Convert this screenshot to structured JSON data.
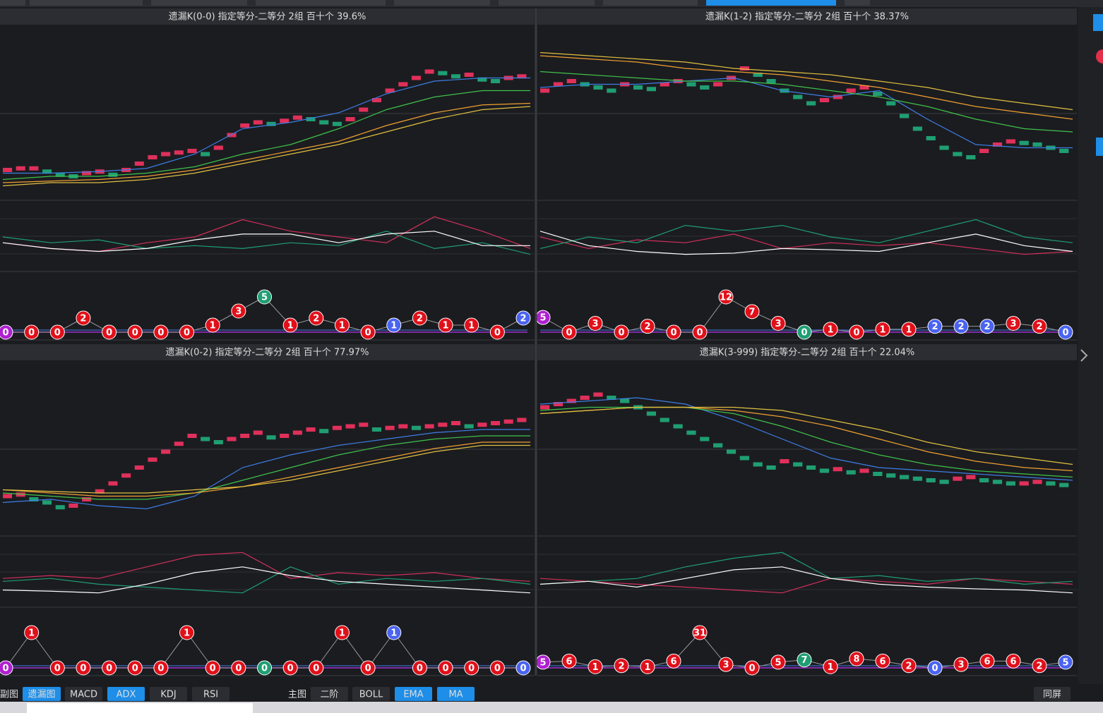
{
  "panels": [
    {
      "title": "遗漏K(0-0)  指定等分-二等分  2组  百十个  39.6%",
      "ylim": [
        0,
        100
      ],
      "indicator_ylim": [
        0,
        100
      ],
      "bubble_ylim": [
        0,
        5
      ],
      "bricks": [
        16,
        17,
        17,
        15,
        13,
        12,
        14,
        15,
        13,
        16,
        20,
        24,
        26,
        27,
        28,
        26,
        30,
        38,
        44,
        46,
        45,
        47,
        49,
        48,
        46,
        45,
        48,
        54,
        60,
        66,
        70,
        74,
        78,
        77,
        75,
        76,
        73,
        72,
        74,
        75
      ],
      "lines": [
        {
          "color": "#3d7ee6",
          "values": [
            14,
            14,
            15,
            17,
            26,
            42,
            46,
            52,
            64,
            72,
            74,
            74
          ]
        },
        {
          "color": "#3fc24a",
          "values": [
            10,
            12,
            12,
            14,
            18,
            26,
            32,
            42,
            54,
            62,
            66,
            66
          ]
        },
        {
          "color": "#f0a030",
          "values": [
            8,
            9,
            10,
            12,
            16,
            22,
            28,
            34,
            44,
            52,
            57,
            58
          ]
        },
        {
          "color": "#e0c040",
          "values": [
            6,
            8,
            8,
            10,
            14,
            20,
            26,
            32,
            40,
            48,
            54,
            56
          ]
        }
      ],
      "indicator": [
        {
          "color": "#d0305a",
          "values": [
            40,
            30,
            25,
            40,
            50,
            80,
            60,
            50,
            40,
            85,
            60,
            30
          ]
        },
        {
          "color": "#1f9e72",
          "values": [
            50,
            40,
            45,
            30,
            35,
            30,
            40,
            35,
            60,
            30,
            40,
            20
          ]
        },
        {
          "color": "#ffffff",
          "values": [
            40,
            30,
            25,
            30,
            45,
            55,
            55,
            40,
            55,
            60,
            35,
            35
          ]
        }
      ],
      "bubbles": {
        "values": [
          0,
          0,
          0,
          2,
          0,
          0,
          0,
          0,
          1,
          3,
          5,
          1,
          2,
          1,
          0,
          1,
          2,
          1,
          1,
          0,
          2
        ],
        "colors": [
          "#b020d0",
          "#e0101a",
          "#e0101a",
          "#e0101a",
          "#e0101a",
          "#e0101a",
          "#e0101a",
          "#e0101a",
          "#e0101a",
          "#e0101a",
          "#1f9e72",
          "#e0101a",
          "#e0101a",
          "#e0101a",
          "#e0101a",
          "#4a63f0",
          "#e0101a",
          "#e0101a",
          "#e0101a",
          "#e0101a",
          "#4a63f0"
        ]
      }
    },
    {
      "title": "遗漏K(1-2)  指定等分-二等分  2组  百十个  38.37%",
      "ylim": [
        0,
        100
      ],
      "indicator_ylim": [
        0,
        100
      ],
      "bubble_ylim": [
        0,
        12
      ],
      "bricks": [
        66,
        70,
        72,
        70,
        68,
        66,
        70,
        68,
        67,
        70,
        72,
        70,
        68,
        70,
        74,
        80,
        76,
        72,
        66,
        62,
        58,
        60,
        62,
        66,
        68,
        64,
        58,
        50,
        42,
        36,
        30,
        26,
        24,
        28,
        32,
        34,
        33,
        32,
        30,
        28
      ],
      "lines": [
        {
          "color": "#3d7ee6",
          "values": [
            68,
            70,
            70,
            72,
            74,
            66,
            62,
            66,
            48,
            32,
            30,
            30
          ]
        },
        {
          "color": "#3fc24a",
          "values": [
            78,
            76,
            74,
            72,
            72,
            70,
            66,
            62,
            56,
            48,
            42,
            40
          ]
        },
        {
          "color": "#f0a030",
          "values": [
            88,
            86,
            84,
            80,
            78,
            76,
            72,
            68,
            62,
            56,
            52,
            48
          ]
        },
        {
          "color": "#e0c040",
          "values": [
            90,
            88,
            86,
            84,
            80,
            78,
            76,
            72,
            68,
            62,
            58,
            54
          ]
        }
      ],
      "indicator": [
        {
          "color": "#d0305a",
          "values": [
            50,
            30,
            45,
            40,
            55,
            30,
            40,
            35,
            40,
            30,
            20,
            25
          ]
        },
        {
          "color": "#1f9e72",
          "values": [
            30,
            50,
            40,
            70,
            60,
            70,
            50,
            40,
            60,
            80,
            50,
            40
          ]
        },
        {
          "color": "#ffffff",
          "values": [
            60,
            35,
            25,
            20,
            22,
            30,
            28,
            25,
            40,
            55,
            35,
            25
          ]
        }
      ],
      "bubbles": {
        "values": [
          5,
          0,
          3,
          0,
          2,
          0,
          0,
          12,
          7,
          3,
          0,
          1,
          0,
          1,
          1,
          2,
          2,
          2,
          3,
          2,
          0
        ],
        "colors": [
          "#b020d0",
          "#e0101a",
          "#e0101a",
          "#e0101a",
          "#e0101a",
          "#e0101a",
          "#e0101a",
          "#e0101a",
          "#e0101a",
          "#e0101a",
          "#1f9e72",
          "#e0101a",
          "#e0101a",
          "#e0101a",
          "#e0101a",
          "#4a63f0",
          "#4a63f0",
          "#4a63f0",
          "#e0101a",
          "#e0101a",
          "#4a63f0"
        ]
      }
    },
    {
      "title": "遗漏K(0-2)  指定等分-二等分  2组  百十个  77.97%",
      "ylim": [
        0,
        100
      ],
      "indicator_ylim": [
        0,
        100
      ],
      "bubble_ylim": [
        0,
        1
      ],
      "bricks": [
        22,
        23,
        20,
        18,
        15,
        16,
        20,
        25,
        30,
        35,
        40,
        45,
        50,
        55,
        60,
        58,
        56,
        58,
        60,
        62,
        59,
        60,
        62,
        64,
        63,
        65,
        66,
        67,
        64,
        65,
        66,
        65,
        66,
        67,
        68,
        66,
        67,
        68,
        69,
        70
      ],
      "lines": [
        {
          "color": "#3d7ee6",
          "values": [
            18,
            20,
            16,
            14,
            22,
            40,
            48,
            54,
            58,
            62,
            64,
            64
          ]
        },
        {
          "color": "#3fc24a",
          "values": [
            24,
            22,
            20,
            20,
            24,
            32,
            40,
            48,
            54,
            58,
            60,
            60
          ]
        },
        {
          "color": "#f0a030",
          "values": [
            26,
            24,
            22,
            22,
            24,
            28,
            34,
            40,
            46,
            52,
            56,
            56
          ]
        },
        {
          "color": "#e0c040",
          "values": [
            26,
            25,
            24,
            24,
            26,
            28,
            32,
            38,
            44,
            50,
            54,
            54
          ]
        }
      ],
      "indicator": [
        {
          "color": "#d0305a",
          "values": [
            40,
            45,
            40,
            60,
            80,
            85,
            40,
            50,
            45,
            50,
            40,
            35
          ]
        },
        {
          "color": "#1f9e72",
          "values": [
            35,
            40,
            30,
            25,
            20,
            15,
            60,
            30,
            40,
            35,
            40,
            30
          ]
        },
        {
          "color": "#ffffff",
          "values": [
            20,
            18,
            15,
            30,
            50,
            60,
            45,
            35,
            30,
            25,
            20,
            15
          ]
        }
      ],
      "bubbles": {
        "values": [
          0,
          1,
          0,
          0,
          0,
          0,
          0,
          1,
          0,
          0,
          0,
          0,
          0,
          1,
          0,
          1,
          0,
          0,
          0,
          0,
          0
        ],
        "colors": [
          "#b020d0",
          "#e0101a",
          "#e0101a",
          "#e0101a",
          "#e0101a",
          "#e0101a",
          "#e0101a",
          "#e0101a",
          "#e0101a",
          "#e0101a",
          "#1f9e72",
          "#e0101a",
          "#e0101a",
          "#e0101a",
          "#e0101a",
          "#4a63f0",
          "#e0101a",
          "#e0101a",
          "#e0101a",
          "#e0101a",
          "#4a63f0"
        ]
      }
    },
    {
      "title": "遗漏K(3-999)  指定等分-二等分  2组  百十个  22.04%",
      "ylim": [
        0,
        100
      ],
      "indicator_ylim": [
        0,
        100
      ],
      "bubble_ylim": [
        0,
        31
      ],
      "bricks": [
        78,
        80,
        82,
        84,
        86,
        84,
        82,
        78,
        74,
        70,
        66,
        62,
        58,
        54,
        50,
        46,
        42,
        40,
        44,
        42,
        40,
        38,
        39,
        37,
        38,
        36,
        35,
        34,
        33,
        32,
        31,
        33,
        34,
        32,
        31,
        30,
        30,
        31,
        30,
        29
      ],
      "lines": [
        {
          "color": "#3d7ee6",
          "values": [
            80,
            82,
            84,
            80,
            70,
            58,
            46,
            40,
            38,
            36,
            34,
            32
          ]
        },
        {
          "color": "#3fc24a",
          "values": [
            76,
            78,
            78,
            78,
            74,
            66,
            56,
            48,
            42,
            38,
            36,
            34
          ]
        },
        {
          "color": "#f0a030",
          "values": [
            74,
            76,
            78,
            78,
            76,
            72,
            66,
            58,
            50,
            44,
            40,
            38
          ]
        },
        {
          "color": "#e0c040",
          "values": [
            74,
            76,
            78,
            78,
            78,
            76,
            70,
            64,
            56,
            50,
            46,
            42
          ]
        }
      ],
      "indicator": [
        {
          "color": "#d0305a",
          "values": [
            40,
            35,
            30,
            25,
            20,
            15,
            40,
            35,
            30,
            40,
            35,
            30
          ]
        },
        {
          "color": "#1f9e72",
          "values": [
            30,
            35,
            40,
            60,
            75,
            85,
            40,
            45,
            35,
            40,
            30,
            35
          ]
        },
        {
          "color": "#ffffff",
          "values": [
            30,
            35,
            25,
            40,
            55,
            60,
            40,
            30,
            25,
            22,
            20,
            15
          ]
        }
      ],
      "bubbles": {
        "values": [
          5,
          6,
          1,
          2,
          1,
          6,
          31,
          3,
          0,
          5,
          7,
          1,
          8,
          6,
          2,
          0,
          3,
          6,
          6,
          2,
          5
        ],
        "colors": [
          "#b020d0",
          "#e0101a",
          "#e0101a",
          "#e0101a",
          "#e0101a",
          "#e0101a",
          "#e0101a",
          "#e0101a",
          "#e0101a",
          "#e0101a",
          "#1f9e72",
          "#e0101a",
          "#e0101a",
          "#e0101a",
          "#e0101a",
          "#4a63f0",
          "#e0101a",
          "#e0101a",
          "#e0101a",
          "#e0101a",
          "#4a63f0"
        ]
      }
    }
  ],
  "toolbar": [
    {
      "label": "副图",
      "button": false,
      "active": false
    },
    {
      "label": "遗漏图",
      "button": true,
      "active": true
    },
    {
      "label": "MACD",
      "button": true,
      "active": false
    },
    {
      "label": "ADX",
      "button": true,
      "active": true
    },
    {
      "label": "KDJ",
      "button": true,
      "active": false
    },
    {
      "label": "RSI",
      "button": true,
      "active": false
    },
    {
      "label": "主图",
      "button": false,
      "active": false
    },
    {
      "label": "二阶",
      "button": true,
      "active": false
    },
    {
      "label": "BOLL",
      "button": true,
      "active": false
    },
    {
      "label": "EMA",
      "button": true,
      "active": true
    },
    {
      "label": "MA",
      "button": true,
      "active": true
    },
    {
      "label": "同屏",
      "button": true,
      "active": false
    }
  ]
}
